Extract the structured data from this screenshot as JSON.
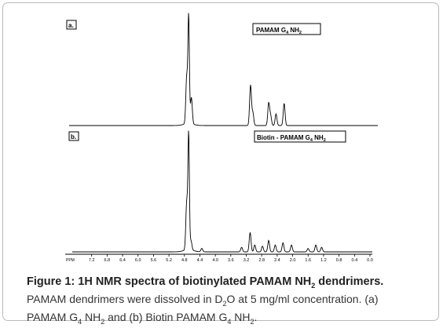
{
  "chart_data": {
    "type": "line",
    "xlabel": "PPM",
    "x_reversed": true,
    "xlim": [
      7.6,
      0.0
    ],
    "x_ticks": [
      "7.2",
      "6.8",
      "6.4",
      "6.0",
      "5.6",
      "5.2",
      "4.8",
      "4.4",
      "4.0",
      "3.6",
      "3.2",
      "2.8",
      "2.4",
      "2.0",
      "1.6",
      "1.2",
      "0.8",
      "0.4",
      "0.0"
    ],
    "panels": [
      {
        "panel_label": "a.",
        "compound_label": "PAMAM G4  NH2",
        "compound_parts": {
          "base": "PAMAM G",
          "sub1": "4",
          "mid": "  NH",
          "sub2": "2"
        },
        "peaks": [
          {
            "ppm": 4.69,
            "height": 1.0
          },
          {
            "ppm": 4.74,
            "height": 0.45
          },
          {
            "ppm": 4.62,
            "height": 0.25
          },
          {
            "ppm": 3.09,
            "height": 0.38
          },
          {
            "ppm": 3.03,
            "height": 0.12
          },
          {
            "ppm": 2.62,
            "height": 0.21
          },
          {
            "ppm": 2.57,
            "height": 0.09
          },
          {
            "ppm": 2.43,
            "height": 0.11
          },
          {
            "ppm": 2.22,
            "height": 0.21
          }
        ]
      },
      {
        "panel_label": "b.",
        "compound_label": "Biotin - PAMAM G4  NH2",
        "compound_parts": {
          "base": "Biotin - PAMAM G",
          "sub1": "4",
          "mid": "  NH",
          "sub2": "2"
        },
        "peaks": [
          {
            "ppm": 4.69,
            "height": 1.0
          },
          {
            "ppm": 4.74,
            "height": 0.42
          },
          {
            "ppm": 4.63,
            "height": 0.08
          },
          {
            "ppm": 4.35,
            "height": 0.03
          },
          {
            "ppm": 3.32,
            "height": 0.04
          },
          {
            "ppm": 3.1,
            "height": 0.17
          },
          {
            "ppm": 2.98,
            "height": 0.06
          },
          {
            "ppm": 2.78,
            "height": 0.05
          },
          {
            "ppm": 2.62,
            "height": 0.1
          },
          {
            "ppm": 2.45,
            "height": 0.06
          },
          {
            "ppm": 2.25,
            "height": 0.08
          },
          {
            "ppm": 2.03,
            "height": 0.06
          },
          {
            "ppm": 1.6,
            "height": 0.03
          },
          {
            "ppm": 1.4,
            "height": 0.06
          },
          {
            "ppm": 1.25,
            "height": 0.04
          }
        ]
      }
    ]
  },
  "caption": {
    "title_pre": "Figure 1: 1H NMR spectra of biotinylated PAMAM NH",
    "title_sub": "2",
    "title_post": " dendrimers.",
    "body_1": "PAMAM dendrimers were dissolved in D",
    "body_sub1": "2",
    "body_2": "O at 5 mg/ml concentration. (a)",
    "body_3": "PAMAM G",
    "body_sub2": "4",
    "body_4": " NH",
    "body_sub3": "2",
    "body_5": " and (b) Biotin PAMAM G",
    "body_sub4": "4",
    "body_6": " NH",
    "body_sub5": "2",
    "body_7": "."
  },
  "colors": {
    "trace": "#000000",
    "caption_text": "#333333",
    "frame_border": "#b9b9b9"
  }
}
